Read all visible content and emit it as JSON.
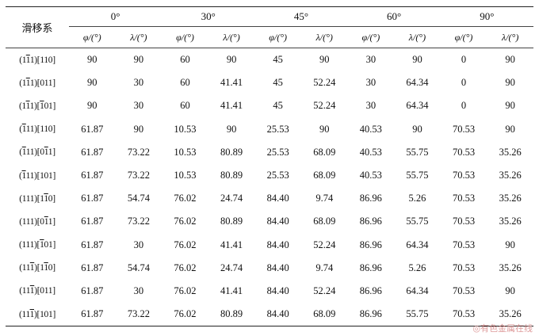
{
  "table": {
    "slip_header": "滑移系",
    "angles": [
      "0°",
      "30°",
      "45°",
      "60°",
      "90°"
    ],
    "sub_phi": "φ/(°)",
    "sub_lambda": "λ/(°)",
    "rows": [
      {
        "slip": [
          [
            "(1",
            ""
          ],
          [
            "1",
            "bar"
          ],
          [
            "1)[110]",
            ""
          ]
        ],
        "values": [
          "90",
          "90",
          "60",
          "90",
          "45",
          "90",
          "30",
          "90",
          "0",
          "90"
        ]
      },
      {
        "slip": [
          [
            "(1",
            ""
          ],
          [
            "1",
            "bar"
          ],
          [
            "1)[011]",
            ""
          ]
        ],
        "values": [
          "90",
          "30",
          "60",
          "41.41",
          "45",
          "52.24",
          "30",
          "64.34",
          "0",
          "90"
        ]
      },
      {
        "slip": [
          [
            "(1",
            ""
          ],
          [
            "1",
            "bar"
          ],
          [
            "1)[",
            ""
          ],
          [
            "1",
            "bar"
          ],
          [
            "01]",
            ""
          ]
        ],
        "values": [
          "90",
          "30",
          "60",
          "41.41",
          "45",
          "52.24",
          "30",
          "64.34",
          "0",
          "90"
        ]
      },
      {
        "slip": [
          [
            "(",
            ""
          ],
          [
            "1",
            "bar"
          ],
          [
            "11)[110]",
            ""
          ]
        ],
        "values": [
          "61.87",
          "90",
          "10.53",
          "90",
          "25.53",
          "90",
          "40.53",
          "90",
          "70.53",
          "90"
        ]
      },
      {
        "slip": [
          [
            "(",
            ""
          ],
          [
            "1",
            "bar"
          ],
          [
            "11)[0",
            ""
          ],
          [
            "1",
            "bar"
          ],
          [
            "1]",
            ""
          ]
        ],
        "values": [
          "61.87",
          "73.22",
          "10.53",
          "80.89",
          "25.53",
          "68.09",
          "40.53",
          "55.75",
          "70.53",
          "35.26"
        ]
      },
      {
        "slip": [
          [
            "(",
            ""
          ],
          [
            "1",
            "bar"
          ],
          [
            "11)[101]",
            ""
          ]
        ],
        "values": [
          "61.87",
          "73.22",
          "10.53",
          "80.89",
          "25.53",
          "68.09",
          "40.53",
          "55.75",
          "70.53",
          "35.26"
        ]
      },
      {
        "slip": [
          [
            "(111)[1",
            ""
          ],
          [
            "1",
            "bar"
          ],
          [
            "0]",
            ""
          ]
        ],
        "values": [
          "61.87",
          "54.74",
          "76.02",
          "24.74",
          "84.40",
          "9.74",
          "86.96",
          "5.26",
          "70.53",
          "35.26"
        ]
      },
      {
        "slip": [
          [
            "(111)[0",
            ""
          ],
          [
            "1",
            "bar"
          ],
          [
            "1]",
            ""
          ]
        ],
        "values": [
          "61.87",
          "73.22",
          "76.02",
          "80.89",
          "84.40",
          "68.09",
          "86.96",
          "55.75",
          "70.53",
          "35.26"
        ]
      },
      {
        "slip": [
          [
            "(111)[",
            ""
          ],
          [
            "1",
            "bar"
          ],
          [
            "01]",
            ""
          ]
        ],
        "values": [
          "61.87",
          "30",
          "76.02",
          "41.41",
          "84.40",
          "52.24",
          "86.96",
          "64.34",
          "70.53",
          "90"
        ]
      },
      {
        "slip": [
          [
            "(11",
            ""
          ],
          [
            "1",
            "bar"
          ],
          [
            ")[1",
            ""
          ],
          [
            "1",
            "bar"
          ],
          [
            "0]",
            ""
          ]
        ],
        "values": [
          "61.87",
          "54.74",
          "76.02",
          "24.74",
          "84.40",
          "9.74",
          "86.96",
          "5.26",
          "70.53",
          "35.26"
        ]
      },
      {
        "slip": [
          [
            "(11",
            ""
          ],
          [
            "1",
            "bar"
          ],
          [
            ")[011]",
            ""
          ]
        ],
        "values": [
          "61.87",
          "30",
          "76.02",
          "41.41",
          "84.40",
          "52.24",
          "86.96",
          "64.34",
          "70.53",
          "90"
        ]
      },
      {
        "slip": [
          [
            "(11",
            ""
          ],
          [
            "1",
            "bar"
          ],
          [
            ")[101]",
            ""
          ]
        ],
        "values": [
          "61.87",
          "73.22",
          "76.02",
          "80.89",
          "84.40",
          "68.09",
          "86.96",
          "55.75",
          "70.53",
          "35.26"
        ]
      }
    ]
  },
  "watermark": "◎有色金属在线"
}
